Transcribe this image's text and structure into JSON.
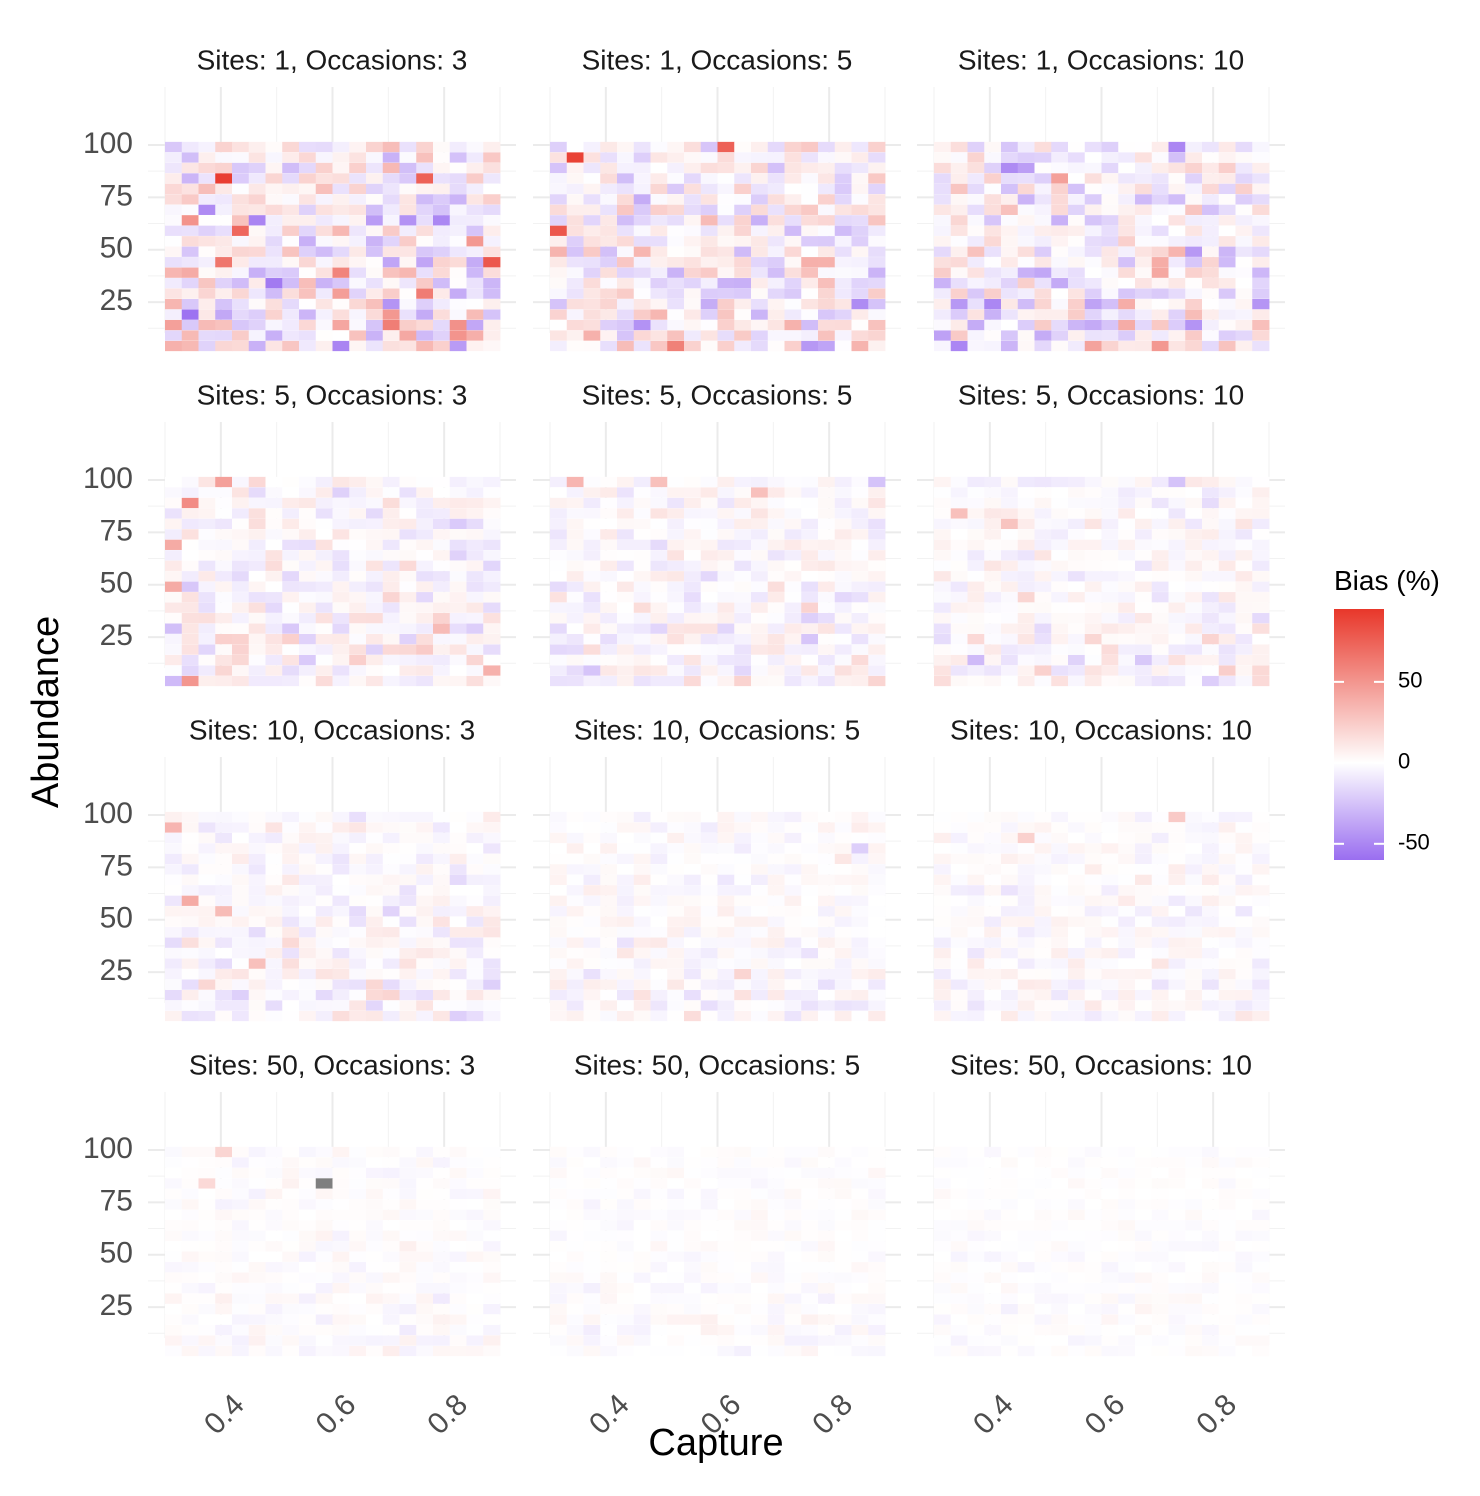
{
  "chart_data": {
    "type": "heatmap",
    "xlabel": "Capture",
    "ylabel": "Abundance",
    "xlim": [
      0.3,
      0.9
    ],
    "ylim": [
      5,
      100
    ],
    "x_ticks": [
      "0.4",
      "0.6",
      "0.8"
    ],
    "x_tick_values": [
      0.4,
      0.6,
      0.8
    ],
    "y_ticks": [
      "25",
      "50",
      "75",
      "100"
    ],
    "y_tick_values": [
      25,
      50,
      75,
      100
    ],
    "x_cells": 20,
    "y_cells": 20,
    "legend": {
      "title": "Bias (%)",
      "ticks": [
        "50",
        "0",
        "-50"
      ],
      "tick_values": [
        50,
        0,
        -50
      ],
      "range": [
        -60,
        95
      ],
      "colors": {
        "low": "#9a6ef0",
        "mid": "#ffffff",
        "high": "#e8372a"
      }
    },
    "na_color": "#7f7f7f",
    "panels": [
      {
        "title": "Sites: 1, Occasions: 3",
        "sites": 1,
        "occasions": 3,
        "bias_spread": 22,
        "outliers": [
          [
            16,
            3,
            92
          ],
          [
            16,
            15,
            75
          ],
          [
            8,
            19,
            80
          ],
          [
            11,
            4,
            72
          ],
          [
            6,
            6,
            -55
          ],
          [
            8,
            3,
            65
          ],
          [
            12,
            14,
            -45
          ]
        ]
      },
      {
        "title": "Sites: 1, Occasions: 5",
        "sites": 1,
        "occasions": 5,
        "bias_spread": 17,
        "outliers": [
          [
            18,
            1,
            90
          ],
          [
            11,
            0,
            80
          ],
          [
            19,
            10,
            75
          ],
          [
            0,
            7,
            60
          ],
          [
            2,
            5,
            -45
          ],
          [
            4,
            18,
            -48
          ]
        ]
      },
      {
        "title": "Sites: 1, Occasions: 10",
        "sites": 1,
        "occasions": 10,
        "bias_spread": 17,
        "outliers": [
          [
            19,
            14,
            -50
          ],
          [
            17,
            4,
            -48
          ],
          [
            16,
            7,
            45
          ],
          [
            2,
            9,
            -35
          ],
          [
            17,
            5,
            -40
          ]
        ]
      },
      {
        "title": "Sites: 5, Occasions: 3",
        "sites": 5,
        "occasions": 3,
        "bias_spread": 10,
        "outliers": [
          [
            17,
            1,
            55
          ],
          [
            0,
            1,
            50
          ],
          [
            19,
            3,
            45
          ],
          [
            9,
            0,
            40
          ],
          [
            13,
            0,
            40
          ]
        ]
      },
      {
        "title": "Sites: 5, Occasions: 5",
        "sites": 5,
        "occasions": 5,
        "bias_spread": 8,
        "outliers": [
          [
            19,
            1,
            35
          ],
          [
            19,
            6,
            30
          ],
          [
            18,
            12,
            30
          ],
          [
            19,
            19,
            -25
          ]
        ]
      },
      {
        "title": "Sites: 5, Occasions: 10",
        "sites": 5,
        "occasions": 10,
        "bias_spread": 7,
        "outliers": [
          [
            16,
            1,
            30
          ],
          [
            15,
            4,
            28
          ],
          [
            19,
            14,
            -25
          ]
        ]
      },
      {
        "title": "Sites: 10, Occasions: 3",
        "sites": 10,
        "occasions": 3,
        "bias_spread": 8,
        "outliers": [
          [
            11,
            1,
            40
          ],
          [
            18,
            0,
            35
          ],
          [
            10,
            3,
            32
          ],
          [
            5,
            5,
            30
          ]
        ]
      },
      {
        "title": "Sites: 10, Occasions: 5",
        "sites": 10,
        "occasions": 5,
        "bias_spread": 5,
        "outliers": [
          [
            16,
            18,
            -20
          ],
          [
            4,
            11,
            20
          ]
        ]
      },
      {
        "title": "Sites: 10, Occasions: 10",
        "sites": 10,
        "occasions": 10,
        "bias_spread": 5,
        "outliers": [
          [
            19,
            14,
            25
          ],
          [
            17,
            5,
            22
          ]
        ]
      },
      {
        "title": "Sites: 50, Occasions: 3",
        "sites": 50,
        "occasions": 3,
        "bias_spread": 3,
        "outliers": [
          [
            19,
            3,
            20
          ],
          [
            16,
            2,
            18
          ]
        ],
        "na_cell": [
          16,
          9
        ]
      },
      {
        "title": "Sites: 50, Occasions: 5",
        "sites": 50,
        "occasions": 5,
        "bias_spread": 2.5,
        "outliers": []
      },
      {
        "title": "Sites: 50, Occasions: 10",
        "sites": 50,
        "occasions": 10,
        "bias_spread": 2,
        "outliers": []
      }
    ]
  }
}
